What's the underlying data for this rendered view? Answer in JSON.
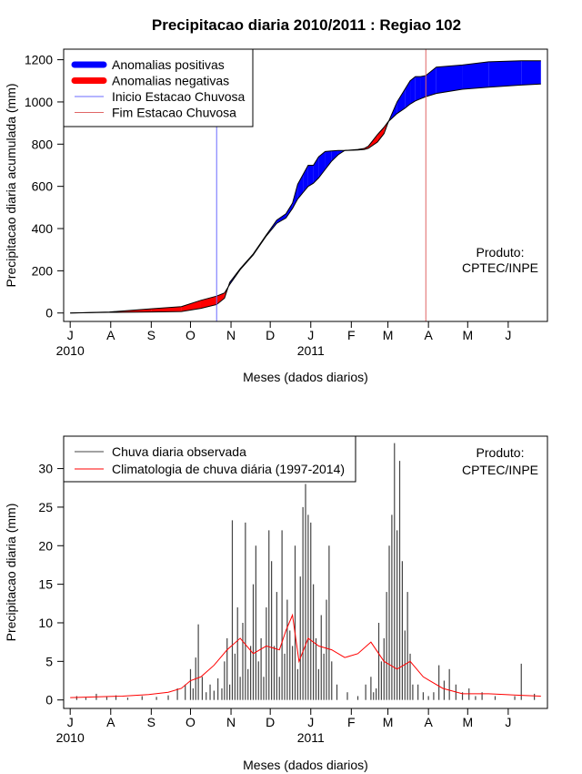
{
  "title": "Precipitacao diaria 2010/2011 : Regiao 102",
  "colors": {
    "positive": "#0000ff",
    "negative": "#ff0000",
    "start_line": "#6b6bff",
    "end_line": "#e06666",
    "obs_bars": "#444444",
    "clim_line": "#ff0000"
  },
  "chart_data": [
    {
      "type": "area",
      "name": "accumulated",
      "ylabel": "Precipitacao diaria acumulada (mm)",
      "xlabel": "Meses (dados diarios)",
      "ylim": [
        0,
        1200
      ],
      "y_ticks": [
        0,
        200,
        400,
        600,
        800,
        1000,
        1200
      ],
      "x_range_days": [
        -5,
        365
      ],
      "month_ticks": [
        "J",
        "A",
        "S",
        "O",
        "N",
        "D",
        "J",
        "F",
        "M",
        "A",
        "M",
        "J"
      ],
      "month_tick_days": [
        0,
        31,
        62,
        92,
        123,
        153,
        184,
        215,
        243,
        274,
        304,
        335
      ],
      "year_labels": [
        {
          "text": "2010",
          "day": 0
        },
        {
          "text": "2011",
          "day": 184
        }
      ],
      "legend": {
        "items": [
          "Anomalias positivas",
          "Anomalias negativas",
          "Inicio Estacao Chuvosa",
          "Fim Estacao Chuvosa"
        ],
        "position": "top-left"
      },
      "annotation": {
        "line1": "Produto:",
        "line2": "CPTEC/INPE"
      },
      "start_day": 112,
      "end_day": 272,
      "observed": {
        "x": [
          0,
          30,
          62,
          85,
          100,
          112,
          118,
          122,
          130,
          140,
          150,
          158,
          165,
          170,
          174,
          178,
          182,
          186,
          190,
          195,
          200,
          205,
          210,
          220,
          225,
          228,
          235,
          240,
          243,
          250,
          256,
          260,
          264,
          268,
          272,
          280,
          300,
          320,
          345,
          360
        ],
        "values": [
          0,
          3,
          5,
          7,
          22,
          40,
          70,
          145,
          210,
          280,
          370,
          440,
          470,
          520,
          610,
          655,
          700,
          700,
          740,
          765,
          768,
          770,
          770,
          772,
          775,
          780,
          810,
          850,
          900,
          1000,
          1060,
          1100,
          1120,
          1120,
          1125,
          1165,
          1175,
          1190,
          1195,
          1195
        ]
      },
      "climatology": {
        "x": [
          0,
          30,
          62,
          85,
          100,
          112,
          118,
          122,
          130,
          140,
          150,
          158,
          165,
          170,
          174,
          178,
          182,
          186,
          190,
          195,
          200,
          205,
          210,
          220,
          225,
          228,
          235,
          240,
          243,
          250,
          256,
          260,
          264,
          268,
          272,
          280,
          300,
          320,
          345,
          360
        ],
        "values": [
          0,
          5,
          20,
          30,
          60,
          80,
          95,
          135,
          205,
          275,
          365,
          425,
          450,
          495,
          540,
          570,
          600,
          615,
          640,
          680,
          720,
          750,
          770,
          775,
          780,
          790,
          845,
          880,
          905,
          945,
          970,
          990,
          1005,
          1015,
          1025,
          1040,
          1060,
          1070,
          1080,
          1085
        ]
      }
    },
    {
      "type": "bar",
      "name": "daily",
      "ylabel": "Precipitacao diaria (mm)",
      "xlabel": "Meses (dados diarios)",
      "ylim": [
        0,
        33
      ],
      "y_ticks": [
        0,
        5,
        10,
        15,
        20,
        25,
        30
      ],
      "x_range_days": [
        -5,
        365
      ],
      "month_ticks": [
        "J",
        "A",
        "S",
        "O",
        "N",
        "D",
        "J",
        "F",
        "M",
        "A",
        "M",
        "J"
      ],
      "month_tick_days": [
        0,
        31,
        62,
        92,
        123,
        153,
        184,
        215,
        243,
        274,
        304,
        335
      ],
      "year_labels": [
        {
          "text": "2010",
          "day": 0
        },
        {
          "text": "2011",
          "day": 184
        }
      ],
      "legend": {
        "items": [
          "Chuva diaria observada",
          "Climatologia de chuva diária (1997-2014)"
        ],
        "position": "top-left"
      },
      "annotation": {
        "line1": "Produto:",
        "line2": "CPTEC/INPE"
      },
      "observed": {
        "x": [
          5,
          12,
          20,
          28,
          35,
          44,
          55,
          66,
          75,
          82,
          88,
          92,
          94,
          96,
          98,
          101,
          104,
          107,
          110,
          113,
          116,
          118,
          120,
          122,
          124,
          126,
          128,
          130,
          132,
          134,
          136,
          138,
          140,
          142,
          144,
          146,
          148,
          150,
          152,
          154,
          156,
          158,
          160,
          162,
          164,
          166,
          168,
          170,
          172,
          174,
          176,
          178,
          180,
          182,
          184,
          186,
          188,
          190,
          192,
          194,
          196,
          198,
          200,
          204,
          212,
          220,
          226,
          230,
          232,
          234,
          236,
          238,
          240,
          242,
          244,
          246,
          248,
          250,
          252,
          254,
          256,
          258,
          260,
          262,
          266,
          270,
          274,
          278,
          282,
          286,
          290,
          295,
          300,
          305,
          310,
          315,
          325,
          340,
          345,
          355
        ],
        "values": [
          0.5,
          0.3,
          0.8,
          0.4,
          0.6,
          0.3,
          0.5,
          0.4,
          0.6,
          1.5,
          2.0,
          4.0,
          1.5,
          5.5,
          9.8,
          3.0,
          1.0,
          2.0,
          1.2,
          2.8,
          1.5,
          5.0,
          8.0,
          2.0,
          23.3,
          6.0,
          12.0,
          3.0,
          10.0,
          23.0,
          4.0,
          7.0,
          15.0,
          20.0,
          5.0,
          8.0,
          3.0,
          12.0,
          22.0,
          18.0,
          7.0,
          14.0,
          3.0,
          22.0,
          6.0,
          13.0,
          9.0,
          7.0,
          20.0,
          4.0,
          16.0,
          25.0,
          28.0,
          24.0,
          23.0,
          15.0,
          8.0,
          4.0,
          11.0,
          6.0,
          13.0,
          20.0,
          5.0,
          2.0,
          1.0,
          0.5,
          2.0,
          3.0,
          1.0,
          1.5,
          10.0,
          5.0,
          8.0,
          14.0,
          20.0,
          24.0,
          33.3,
          22.0,
          31.0,
          18.0,
          9.0,
          14.0,
          6.0,
          2.0,
          2.0,
          1.0,
          0.5,
          1.0,
          4.5,
          2.5,
          4.0,
          2.0,
          1.0,
          1.5,
          0.5,
          1.0,
          0.5,
          0.5,
          4.7,
          0.8
        ]
      },
      "climatology": {
        "x": [
          0,
          40,
          60,
          75,
          85,
          92,
          100,
          110,
          120,
          130,
          140,
          150,
          160,
          165,
          170,
          175,
          182,
          190,
          200,
          210,
          220,
          230,
          240,
          250,
          260,
          270,
          275,
          285,
          300,
          320,
          345,
          360
        ],
        "values": [
          0.3,
          0.5,
          0.7,
          1.0,
          1.5,
          2.5,
          3.0,
          4.5,
          6.5,
          8.0,
          6.0,
          7.0,
          6.5,
          9.0,
          11.0,
          5.0,
          8.0,
          7.0,
          6.5,
          5.5,
          6.0,
          7.5,
          5.0,
          4.0,
          5.0,
          3.0,
          2.5,
          1.5,
          0.8,
          0.8,
          0.6,
          0.5
        ]
      }
    }
  ]
}
